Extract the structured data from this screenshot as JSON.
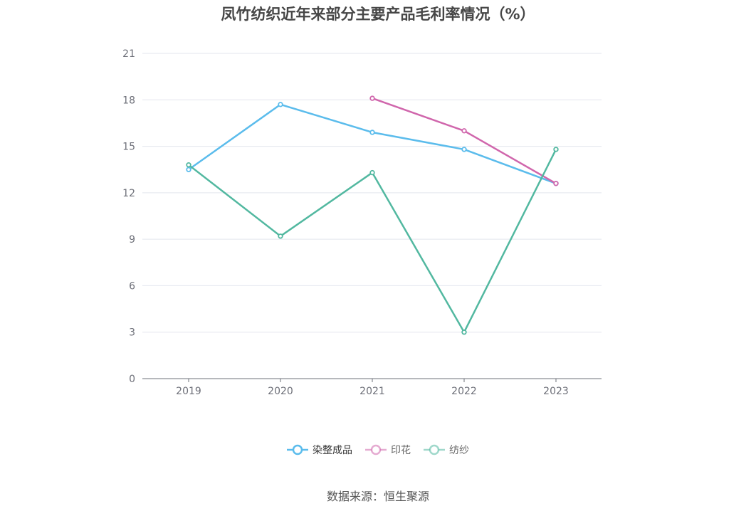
{
  "title": "凤竹纺织近年来部分主要产品毛利率情况（%）",
  "source": "数据来源：恒生聚源",
  "chart_data": {
    "type": "line",
    "title": "凤竹纺织近年来部分主要产品毛利率情况（%）",
    "xlabel": "",
    "ylabel": "",
    "categories": [
      "2019",
      "2020",
      "2021",
      "2022",
      "2023"
    ],
    "ylim": [
      0,
      21
    ],
    "yticks": [
      0,
      3,
      6,
      9,
      12,
      15,
      18,
      21
    ],
    "grid": true,
    "legend": "bottom",
    "series": [
      {
        "name": "染整成品",
        "color": "#5bbcec",
        "values": [
          13.5,
          17.7,
          15.9,
          14.8,
          12.6
        ]
      },
      {
        "name": "印花",
        "color": "#d066ac",
        "values": [
          null,
          null,
          18.1,
          16.0,
          12.6
        ]
      },
      {
        "name": "纺纱",
        "color": "#52b8a0",
        "values": [
          13.8,
          9.2,
          13.3,
          3.0,
          14.8
        ]
      }
    ]
  }
}
